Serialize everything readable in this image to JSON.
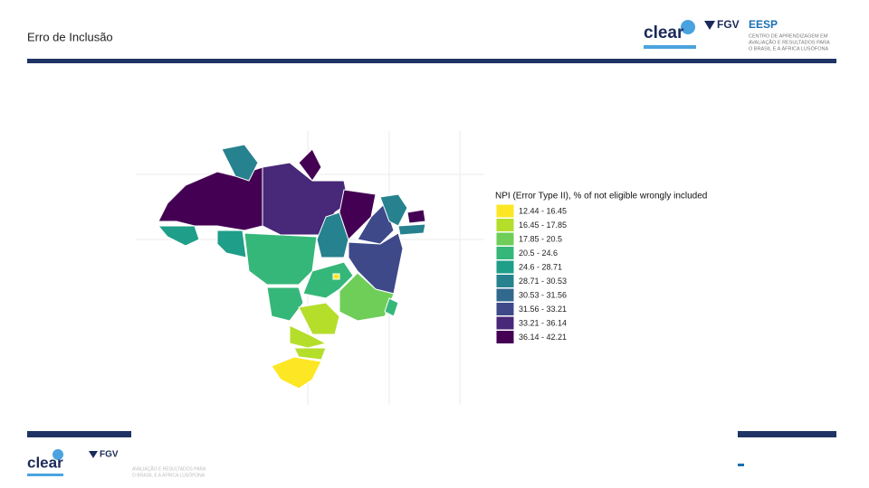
{
  "header": {
    "title": "Erro de Inclusão",
    "logo_clear": "clear",
    "logo_fgv": "FGV",
    "logo_eesp": "EESP",
    "tagline": [
      "CENTRO DE APRENDIZAGEM EM",
      "AVALIAÇÃO E RESULTADOS PARA",
      "O BRASIL E A ÁFRICA LUSÓFONA"
    ]
  },
  "legend": {
    "title": "NPI (Error Type II), % of not eligible wrongly included",
    "items": [
      {
        "label": "12.44 - 16.45",
        "color": "#fde725"
      },
      {
        "label": "16.45 - 17.85",
        "color": "#b5de2b"
      },
      {
        "label": "17.85 - 20.5",
        "color": "#6ece58"
      },
      {
        "label": "20.5 - 24.6",
        "color": "#35b779"
      },
      {
        "label": "24.6 - 28.71",
        "color": "#1f9e89"
      },
      {
        "label": "28.71 - 30.53",
        "color": "#26828e"
      },
      {
        "label": "30.53 - 31.56",
        "color": "#31688e"
      },
      {
        "label": "31.56 - 33.21",
        "color": "#3e4989"
      },
      {
        "label": "33.21 - 36.14",
        "color": "#482878"
      },
      {
        "label": "36.14 - 42.21",
        "color": "#440154"
      }
    ]
  },
  "footer": {
    "logo_clear": "clear",
    "logo_fgv": "FGV",
    "tagline": [
      "AVALIAÇÃO E RESULTADOS PARA",
      "O BRASIL E A ÁFRICA LUSÓFONA"
    ]
  }
}
